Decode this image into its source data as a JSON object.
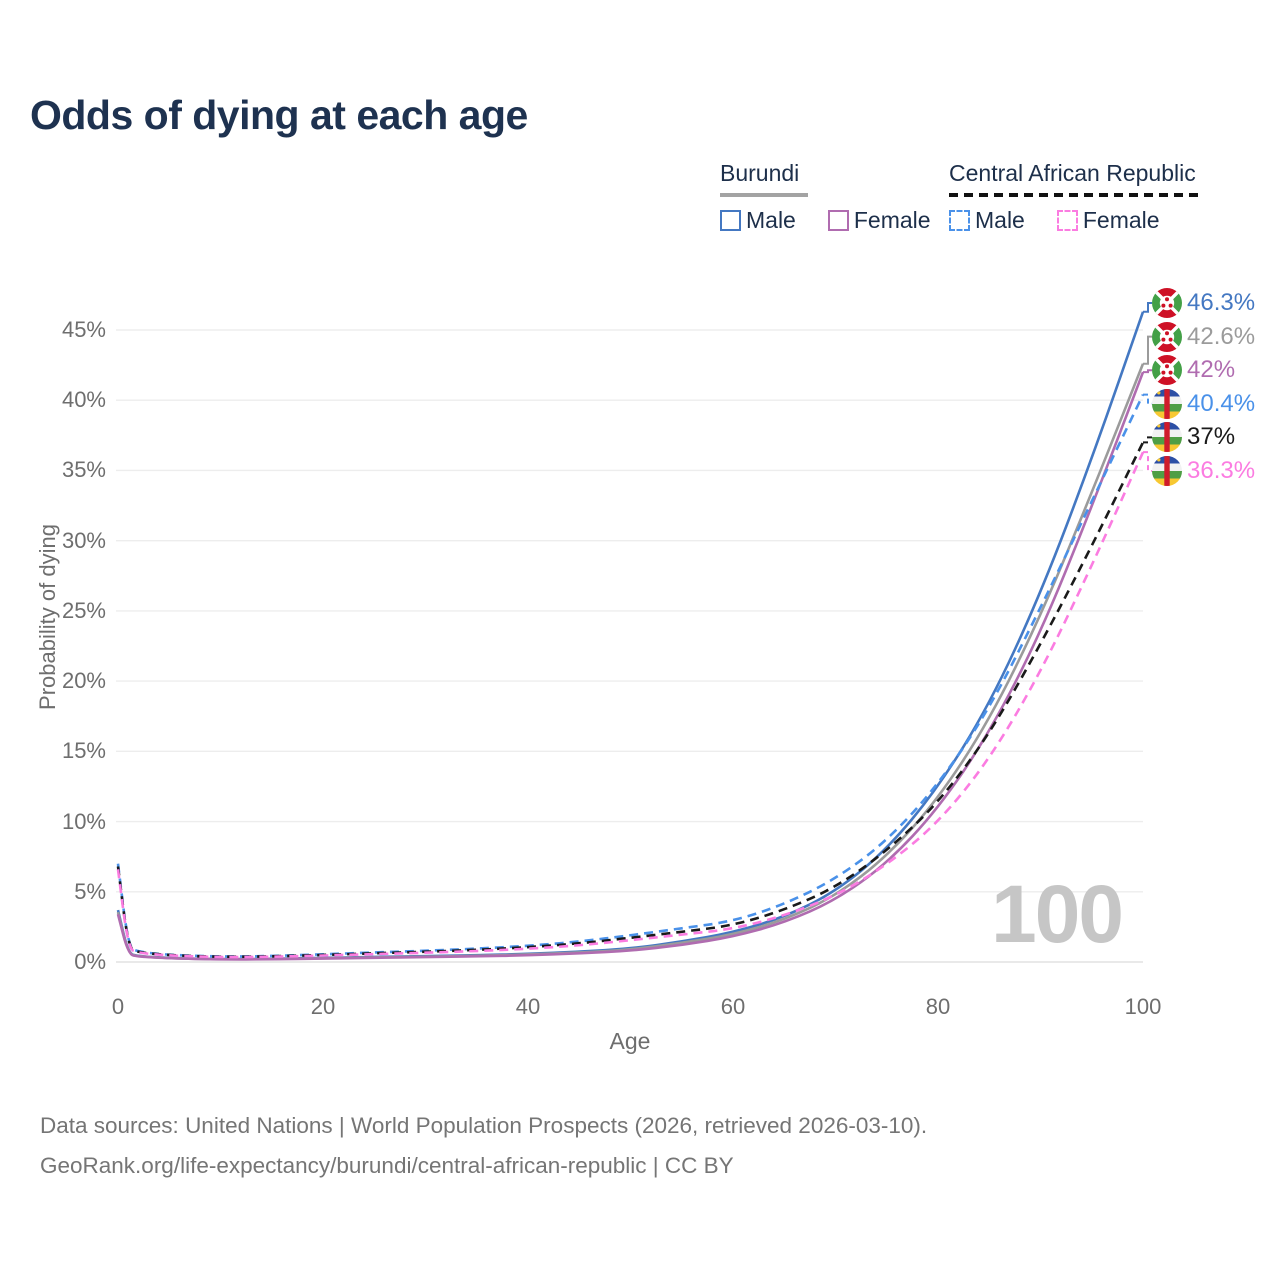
{
  "title": "Odds of dying at each age",
  "watermark": "100",
  "colors": {
    "title": "#1e3250",
    "legend_text": "#1d2f4a",
    "axis_text": "#6e6e6e",
    "grid": "#ededed",
    "grid_zero": "#e2e2e2",
    "footer_text": "#757575",
    "watermark": "#c6c6c6"
  },
  "legend": {
    "groups": [
      {
        "country": "Burundi",
        "underline_style": "solid",
        "underline_color": "#a3a3a3",
        "items": [
          {
            "label": "Male",
            "color": "#4478c2",
            "dashed": false
          },
          {
            "label": "Female",
            "color": "#b06cb0",
            "dashed": false
          }
        ]
      },
      {
        "country": "Central African Republic",
        "underline_style": "dashed",
        "underline_color": "#111111",
        "items": [
          {
            "label": "Male",
            "color": "#4a91e9",
            "dashed": true
          },
          {
            "label": "Female",
            "color": "#fb7ce1",
            "dashed": true
          }
        ]
      }
    ]
  },
  "footer": {
    "line1": "Data sources: United Nations | World Population Prospects (2026, retrieved 2026-03-10).",
    "line2": "GeoRank.org/life-expectancy/burundi/central-african-republic | CC BY"
  },
  "chart_data": {
    "type": "line",
    "title": "Odds of dying at each age",
    "xlabel": "Age",
    "ylabel": "Probability of dying",
    "xlim": [
      0,
      100
    ],
    "ylim_pct": [
      0,
      47
    ],
    "grid": "horizontal",
    "legend_position": "top-right",
    "x_ticks": [
      0,
      20,
      40,
      60,
      80,
      100
    ],
    "y_ticks": [
      "0%",
      "5%",
      "10%",
      "15%",
      "20%",
      "25%",
      "30%",
      "35%",
      "40%",
      "45%"
    ],
    "x": [
      0,
      1,
      2,
      5,
      10,
      15,
      20,
      25,
      30,
      35,
      40,
      45,
      50,
      55,
      60,
      65,
      70,
      75,
      80,
      85,
      90,
      95,
      100
    ],
    "series": [
      {
        "name": "Burundi Male",
        "country": "Burundi",
        "sex": "Male",
        "color": "#4478c2",
        "dashed": false,
        "flag": "burundi",
        "end_label": "46.3%",
        "values_pct": [
          3.7,
          0.6,
          0.42,
          0.28,
          0.2,
          0.22,
          0.3,
          0.36,
          0.42,
          0.48,
          0.58,
          0.73,
          0.95,
          1.45,
          2.1,
          3.2,
          5.0,
          8.0,
          12.4,
          18.3,
          26.2,
          35.8,
          46.3
        ]
      },
      {
        "name": "Burundi",
        "country": "Burundi",
        "sex": "Both",
        "color": "#9b9b9b",
        "dashed": false,
        "flag": "burundi",
        "end_label": "42.6%",
        "values_pct": [
          3.55,
          0.57,
          0.4,
          0.27,
          0.19,
          0.21,
          0.27,
          0.33,
          0.38,
          0.44,
          0.53,
          0.67,
          0.88,
          1.35,
          1.95,
          3.0,
          4.7,
          7.5,
          11.6,
          17.2,
          24.6,
          33.4,
          42.6
        ]
      },
      {
        "name": "Burundi Female",
        "country": "Burundi",
        "sex": "Female",
        "color": "#b06cb0",
        "dashed": false,
        "flag": "burundi",
        "end_label": "42%",
        "values_pct": [
          3.4,
          0.54,
          0.38,
          0.26,
          0.18,
          0.19,
          0.24,
          0.3,
          0.35,
          0.4,
          0.48,
          0.61,
          0.8,
          1.2,
          1.8,
          2.8,
          4.4,
          7.0,
          10.9,
          16.3,
          23.4,
          32.4,
          42.0
        ]
      },
      {
        "name": "Central African Republic Male",
        "country": "Central African Republic",
        "sex": "Male",
        "color": "#4a91e9",
        "dashed": true,
        "flag": "car",
        "end_label": "40.4%",
        "values_pct": [
          7.0,
          1.05,
          0.72,
          0.5,
          0.38,
          0.42,
          0.55,
          0.68,
          0.8,
          0.95,
          1.15,
          1.45,
          1.9,
          2.4,
          2.9,
          4.1,
          5.9,
          8.6,
          12.6,
          18.0,
          25.2,
          32.8,
          40.4
        ]
      },
      {
        "name": "Central African Republic",
        "country": "Central African Republic",
        "sex": "Both",
        "color": "#1a1a1a",
        "dashed": true,
        "flag": "car",
        "end_label": "37%",
        "values_pct": [
          6.8,
          1.0,
          0.68,
          0.48,
          0.36,
          0.4,
          0.5,
          0.62,
          0.73,
          0.86,
          1.05,
          1.32,
          1.72,
          2.15,
          2.6,
          3.7,
          5.3,
          7.9,
          11.3,
          16.2,
          22.6,
          29.6,
          37.0
        ]
      },
      {
        "name": "Central African Republic Female",
        "country": "Central African Republic",
        "sex": "Female",
        "color": "#fb7ce1",
        "dashed": true,
        "flag": "car",
        "end_label": "36.3%",
        "values_pct": [
          6.6,
          0.95,
          0.64,
          0.46,
          0.34,
          0.37,
          0.46,
          0.56,
          0.66,
          0.78,
          0.94,
          1.18,
          1.55,
          1.95,
          2.35,
          3.3,
          4.7,
          6.9,
          9.9,
          14.4,
          20.6,
          28.2,
          36.3
        ]
      }
    ]
  }
}
